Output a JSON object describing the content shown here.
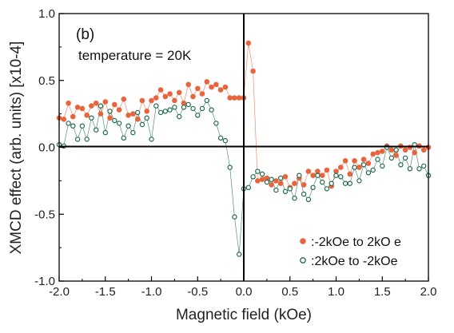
{
  "chart_data": {
    "type": "scatter",
    "panel_label": "(b)",
    "annotation": "temperature = 20K",
    "xlabel": "Magnetic field (kOe)",
    "ylabel": "XMCD effect (arb. units) [x10-4]",
    "xlim": [
      -2.0,
      2.0
    ],
    "ylim": [
      -1.0,
      1.0
    ],
    "x_ticks": [
      "-2.0",
      "-1.5",
      "-1.0",
      "-0.5",
      "0.0",
      "0.5",
      "1.0",
      "1.5",
      "2.0"
    ],
    "y_ticks": [
      "1.0",
      "0.5",
      "0.0",
      "-0.5",
      "-1.0"
    ],
    "grid": false,
    "legend_position": "bottom-right",
    "series": [
      {
        "name": ":-2kOe to 2kO e",
        "color": "#e8643c",
        "marker": "filled-circle",
        "x": [
          -2.0,
          -1.95,
          -1.9,
          -1.85,
          -1.8,
          -1.75,
          -1.7,
          -1.65,
          -1.6,
          -1.55,
          -1.5,
          -1.45,
          -1.4,
          -1.35,
          -1.3,
          -1.25,
          -1.2,
          -1.15,
          -1.1,
          -1.05,
          -1.0,
          -0.95,
          -0.9,
          -0.85,
          -0.8,
          -0.75,
          -0.7,
          -0.65,
          -0.6,
          -0.55,
          -0.5,
          -0.45,
          -0.4,
          -0.35,
          -0.3,
          -0.25,
          -0.2,
          -0.15,
          -0.1,
          -0.05,
          0.0,
          0.05,
          0.1,
          0.15,
          0.2,
          0.25,
          0.3,
          0.35,
          0.4,
          0.45,
          0.5,
          0.55,
          0.6,
          0.65,
          0.7,
          0.75,
          0.8,
          0.85,
          0.9,
          0.95,
          1.0,
          1.05,
          1.1,
          1.15,
          1.2,
          1.25,
          1.3,
          1.35,
          1.4,
          1.45,
          1.5,
          1.55,
          1.6,
          1.65,
          1.7,
          1.75,
          1.8,
          1.85,
          1.9,
          1.95,
          2.0
        ],
        "y": [
          0.22,
          0.21,
          0.33,
          0.23,
          0.3,
          0.29,
          0.24,
          0.31,
          0.33,
          0.25,
          0.34,
          0.22,
          0.32,
          0.28,
          0.36,
          0.24,
          0.25,
          0.21,
          0.35,
          0.27,
          0.35,
          0.37,
          0.43,
          0.38,
          0.4,
          0.35,
          0.41,
          0.33,
          0.47,
          0.38,
          0.44,
          0.4,
          0.49,
          0.45,
          0.47,
          0.43,
          0.45,
          0.37,
          0.37,
          0.37,
          0.37,
          0.78,
          0.57,
          -0.25,
          -0.24,
          -0.23,
          -0.28,
          -0.25,
          -0.27,
          -0.22,
          -0.3,
          -0.27,
          -0.23,
          -0.28,
          -0.18,
          -0.21,
          -0.18,
          -0.21,
          -0.17,
          -0.29,
          -0.18,
          -0.15,
          -0.1,
          -0.2,
          -0.1,
          -0.15,
          -0.09,
          -0.12,
          -0.05,
          -0.04,
          -0.03,
          0.01,
          -0.02,
          -0.06,
          0.01,
          -0.02,
          0.0,
          -0.04,
          0.01,
          -0.02,
          0.0
        ]
      },
      {
        "name": ":2kOe to -2kOe",
        "color": "#1f6b4c",
        "marker": "open-circle",
        "x": [
          -2.0,
          -1.95,
          -1.9,
          -1.85,
          -1.8,
          -1.75,
          -1.7,
          -1.65,
          -1.6,
          -1.55,
          -1.5,
          -1.45,
          -1.4,
          -1.35,
          -1.3,
          -1.25,
          -1.2,
          -1.15,
          -1.1,
          -1.05,
          -1.0,
          -0.95,
          -0.9,
          -0.85,
          -0.8,
          -0.75,
          -0.7,
          -0.65,
          -0.6,
          -0.55,
          -0.5,
          -0.45,
          -0.4,
          -0.35,
          -0.3,
          -0.25,
          -0.2,
          -0.15,
          -0.1,
          -0.05,
          0.0,
          0.05,
          0.1,
          0.15,
          0.2,
          0.25,
          0.3,
          0.35,
          0.4,
          0.45,
          0.5,
          0.55,
          0.6,
          0.65,
          0.7,
          0.75,
          0.8,
          0.85,
          0.9,
          0.95,
          1.0,
          1.05,
          1.1,
          1.15,
          1.2,
          1.25,
          1.3,
          1.35,
          1.4,
          1.45,
          1.5,
          1.55,
          1.6,
          1.65,
          1.7,
          1.75,
          1.8,
          1.85,
          1.9,
          1.95,
          2.0
        ],
        "y": [
          0.02,
          0.01,
          0.18,
          0.16,
          0.06,
          0.16,
          0.06,
          0.22,
          0.13,
          0.31,
          0.11,
          0.27,
          0.2,
          0.18,
          0.07,
          0.16,
          0.11,
          0.26,
          0.17,
          0.22,
          0.06,
          0.31,
          0.26,
          0.27,
          0.28,
          0.3,
          0.23,
          0.3,
          0.32,
          0.29,
          0.24,
          0.29,
          0.35,
          0.28,
          0.18,
          0.07,
          0.05,
          -0.15,
          -0.52,
          -0.8,
          -0.31,
          -0.3,
          -0.22,
          -0.18,
          -0.2,
          -0.26,
          -0.24,
          -0.32,
          -0.23,
          -0.33,
          -0.31,
          -0.38,
          -0.21,
          -0.35,
          -0.39,
          -0.3,
          -0.21,
          -0.26,
          -0.31,
          -0.27,
          -0.21,
          -0.22,
          -0.27,
          -0.27,
          -0.15,
          -0.25,
          -0.13,
          -0.19,
          -0.17,
          -0.09,
          -0.14,
          0.0,
          -0.08,
          -0.02,
          -0.13,
          -0.08,
          -0.16,
          0.02,
          -0.16,
          -0.14,
          -0.21
        ]
      }
    ]
  }
}
